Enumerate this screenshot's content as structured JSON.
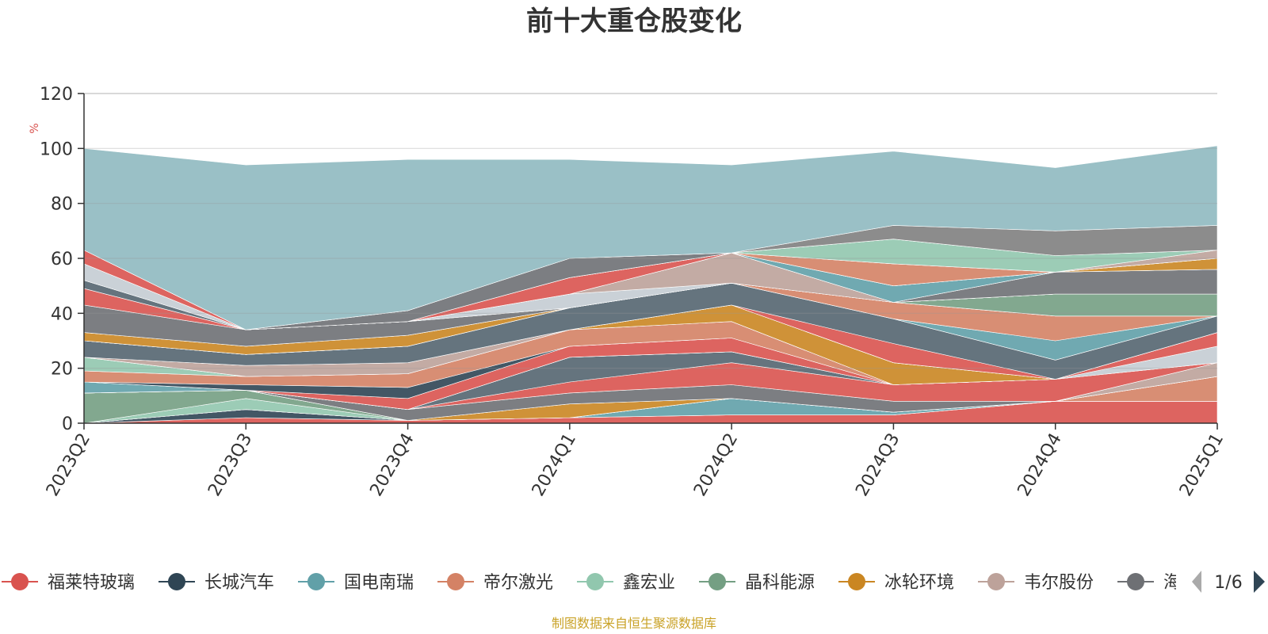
{
  "chart_data": {
    "type": "area",
    "title": "前十大重仓股变化",
    "ylabel": "%",
    "ylim": [
      0,
      120
    ],
    "yticks": [
      0,
      20,
      40,
      60,
      80,
      100,
      120
    ],
    "categories": [
      "2023Q2",
      "2023Q3",
      "2023Q4",
      "2024Q1",
      "2024Q2",
      "2024Q3",
      "2024Q4",
      "2025Q1"
    ],
    "grid": true,
    "legend_position": "bottom",
    "series": [
      {
        "name": "福莱特玻璃",
        "color": "#d9534f",
        "values": [
          0,
          2,
          1,
          2,
          3,
          3,
          8,
          8
        ]
      },
      {
        "name": "长城汽车",
        "color": "#2f4554",
        "values": [
          0,
          3,
          0,
          0,
          0,
          0,
          0,
          0
        ]
      },
      {
        "name": "国电南瑞",
        "color": "#61a0a8",
        "values": [
          0,
          0,
          0,
          0,
          6,
          1,
          0,
          0
        ]
      },
      {
        "name": "帝尔激光",
        "color": "#d48265",
        "values": [
          0,
          0,
          0,
          0,
          0,
          0,
          0,
          9
        ]
      },
      {
        "name": "鑫宏业",
        "color": "#91c7ae",
        "values": [
          0,
          4,
          0,
          0,
          0,
          0,
          0,
          0
        ]
      },
      {
        "name": "晶科能源",
        "color": "#749f83",
        "values": [
          11,
          3,
          0,
          0,
          0,
          0,
          0,
          0
        ]
      },
      {
        "name": "冰轮环境",
        "color": "#ca8622",
        "values": [
          0,
          0,
          0,
          5,
          0,
          0,
          0,
          0
        ]
      },
      {
        "name": "韦尔股份",
        "color": "#bda29a",
        "values": [
          0,
          0,
          0,
          0,
          0,
          0,
          0,
          5
        ]
      },
      {
        "name": "",
        "color": "#6e7074",
        "values": [
          0,
          0,
          4,
          4,
          5,
          4,
          0,
          0
        ]
      },
      {
        "name": "",
        "color": "#d9534f",
        "values": [
          0,
          0,
          0,
          4,
          8,
          6,
          8,
          0
        ]
      },
      {
        "name": "",
        "color": "#546570",
        "values": [
          0,
          0,
          0,
          9,
          4,
          0,
          0,
          0
        ]
      },
      {
        "name": "",
        "color": "#c4ccd3",
        "values": [
          0,
          0,
          0,
          0,
          0,
          0,
          0,
          6
        ]
      },
      {
        "name": "",
        "color": "#61a0a8",
        "values": [
          4,
          0,
          0,
          0,
          0,
          0,
          0,
          0
        ]
      },
      {
        "name": "",
        "color": "#d9534f",
        "values": [
          0,
          0,
          4,
          4,
          5,
          0,
          0,
          5
        ]
      },
      {
        "name": "",
        "color": "#2f4554",
        "values": [
          0,
          2,
          4,
          0,
          0,
          0,
          0,
          0
        ]
      },
      {
        "name": "",
        "color": "#d48265",
        "values": [
          4,
          3,
          5,
          6,
          6,
          0,
          0,
          0
        ]
      },
      {
        "name": "",
        "color": "#91c7ae",
        "values": [
          5,
          0,
          0,
          0,
          0,
          0,
          0,
          0
        ]
      },
      {
        "name": "",
        "color": "#ca8622",
        "values": [
          0,
          0,
          0,
          0,
          6,
          8,
          0,
          0
        ]
      },
      {
        "name": "",
        "color": "#bda29a",
        "values": [
          0,
          4,
          4,
          0,
          0,
          0,
          0,
          0
        ]
      },
      {
        "name": "",
        "color": "#6e7074",
        "values": [
          0,
          0,
          0,
          0,
          0,
          0,
          0,
          0
        ]
      },
      {
        "name": "",
        "color": "#d9534f",
        "values": [
          0,
          0,
          0,
          0,
          0,
          7,
          0,
          0
        ]
      },
      {
        "name": "",
        "color": "#546570",
        "values": [
          6,
          4,
          6,
          8,
          8,
          9,
          7,
          6
        ]
      },
      {
        "name": "",
        "color": "#c4ccd3",
        "values": [
          0,
          0,
          0,
          0,
          0,
          0,
          0,
          0
        ]
      },
      {
        "name": "",
        "color": "#61a0a8",
        "values": [
          0,
          0,
          0,
          0,
          0,
          0,
          7,
          0
        ]
      },
      {
        "name": "",
        "color": "#d48265",
        "values": [
          0,
          0,
          0,
          0,
          0,
          6,
          9,
          0
        ]
      },
      {
        "name": "",
        "color": "#ca8622",
        "values": [
          3,
          3,
          4,
          0,
          0,
          0,
          0,
          0
        ]
      },
      {
        "name": "",
        "color": "#749f83",
        "values": [
          0,
          0,
          0,
          0,
          0,
          0,
          8,
          8
        ]
      },
      {
        "name": "",
        "color": "#6e7074",
        "values": [
          10,
          6,
          5,
          0,
          0,
          0,
          0,
          0
        ]
      },
      {
        "name": "",
        "color": "#d9534f",
        "values": [
          6,
          0,
          0,
          0,
          0,
          0,
          0,
          0
        ]
      },
      {
        "name": "",
        "color": "#c4ccd3",
        "values": [
          0,
          0,
          0,
          5,
          0,
          0,
          0,
          0
        ]
      },
      {
        "name": "",
        "color": "#bda29a",
        "values": [
          0,
          0,
          0,
          0,
          11,
          0,
          0,
          0
        ]
      },
      {
        "name": "",
        "color": "#546570",
        "values": [
          3,
          0,
          0,
          0,
          0,
          0,
          0,
          0
        ]
      },
      {
        "name": "",
        "color": "#6e7074",
        "values": [
          0,
          0,
          0,
          0,
          0,
          0,
          8,
          9
        ]
      },
      {
        "name": "",
        "color": "#c4ccd3",
        "values": [
          6,
          0,
          0,
          0,
          0,
          0,
          0,
          0
        ]
      },
      {
        "name": "",
        "color": "#61a0a8",
        "values": [
          0,
          0,
          0,
          0,
          0,
          6,
          0,
          0
        ]
      },
      {
        "name": "",
        "color": "#ca8622",
        "values": [
          0,
          0,
          0,
          0,
          0,
          0,
          0,
          4
        ]
      },
      {
        "name": "",
        "color": "#d9534f",
        "values": [
          5,
          0,
          0,
          6,
          0,
          0,
          0,
          0
        ]
      },
      {
        "name": "",
        "color": "#d48265",
        "values": [
          0,
          0,
          0,
          0,
          0,
          8,
          0,
          0
        ]
      },
      {
        "name": "",
        "color": "#bda29a",
        "values": [
          0,
          0,
          0,
          0,
          0,
          0,
          0,
          3
        ]
      },
      {
        "name": "",
        "color": "#91c7ae",
        "values": [
          0,
          0,
          0,
          0,
          0,
          9,
          6,
          0
        ]
      },
      {
        "name": "",
        "color": "#6e7074",
        "values": [
          0,
          0,
          4,
          7,
          0,
          0,
          0,
          0
        ]
      },
      {
        "name": "",
        "color": "#7f7f7f",
        "values": [
          0,
          0,
          0,
          0,
          0,
          5,
          9,
          9
        ]
      },
      {
        "name": "",
        "color": "#8fb9c0",
        "values": [
          37,
          60,
          55,
          36,
          32,
          27,
          23,
          29
        ]
      }
    ]
  },
  "legend": {
    "items": [
      {
        "label": "福莱特玻璃",
        "color": "#d9534f"
      },
      {
        "label": "长城汽车",
        "color": "#2f4554"
      },
      {
        "label": "国电南瑞",
        "color": "#61a0a8"
      },
      {
        "label": "帝尔激光",
        "color": "#d48265"
      },
      {
        "label": "鑫宏业",
        "color": "#91c7ae"
      },
      {
        "label": "晶科能源",
        "color": "#749f83"
      },
      {
        "label": "冰轮环境",
        "color": "#ca8622"
      },
      {
        "label": "韦尔股份",
        "color": "#bda29a"
      },
      {
        "label": "海",
        "color": "#6e7074"
      }
    ],
    "page": "1/6"
  },
  "source_note": "制图数据来自恒生聚源数据库"
}
